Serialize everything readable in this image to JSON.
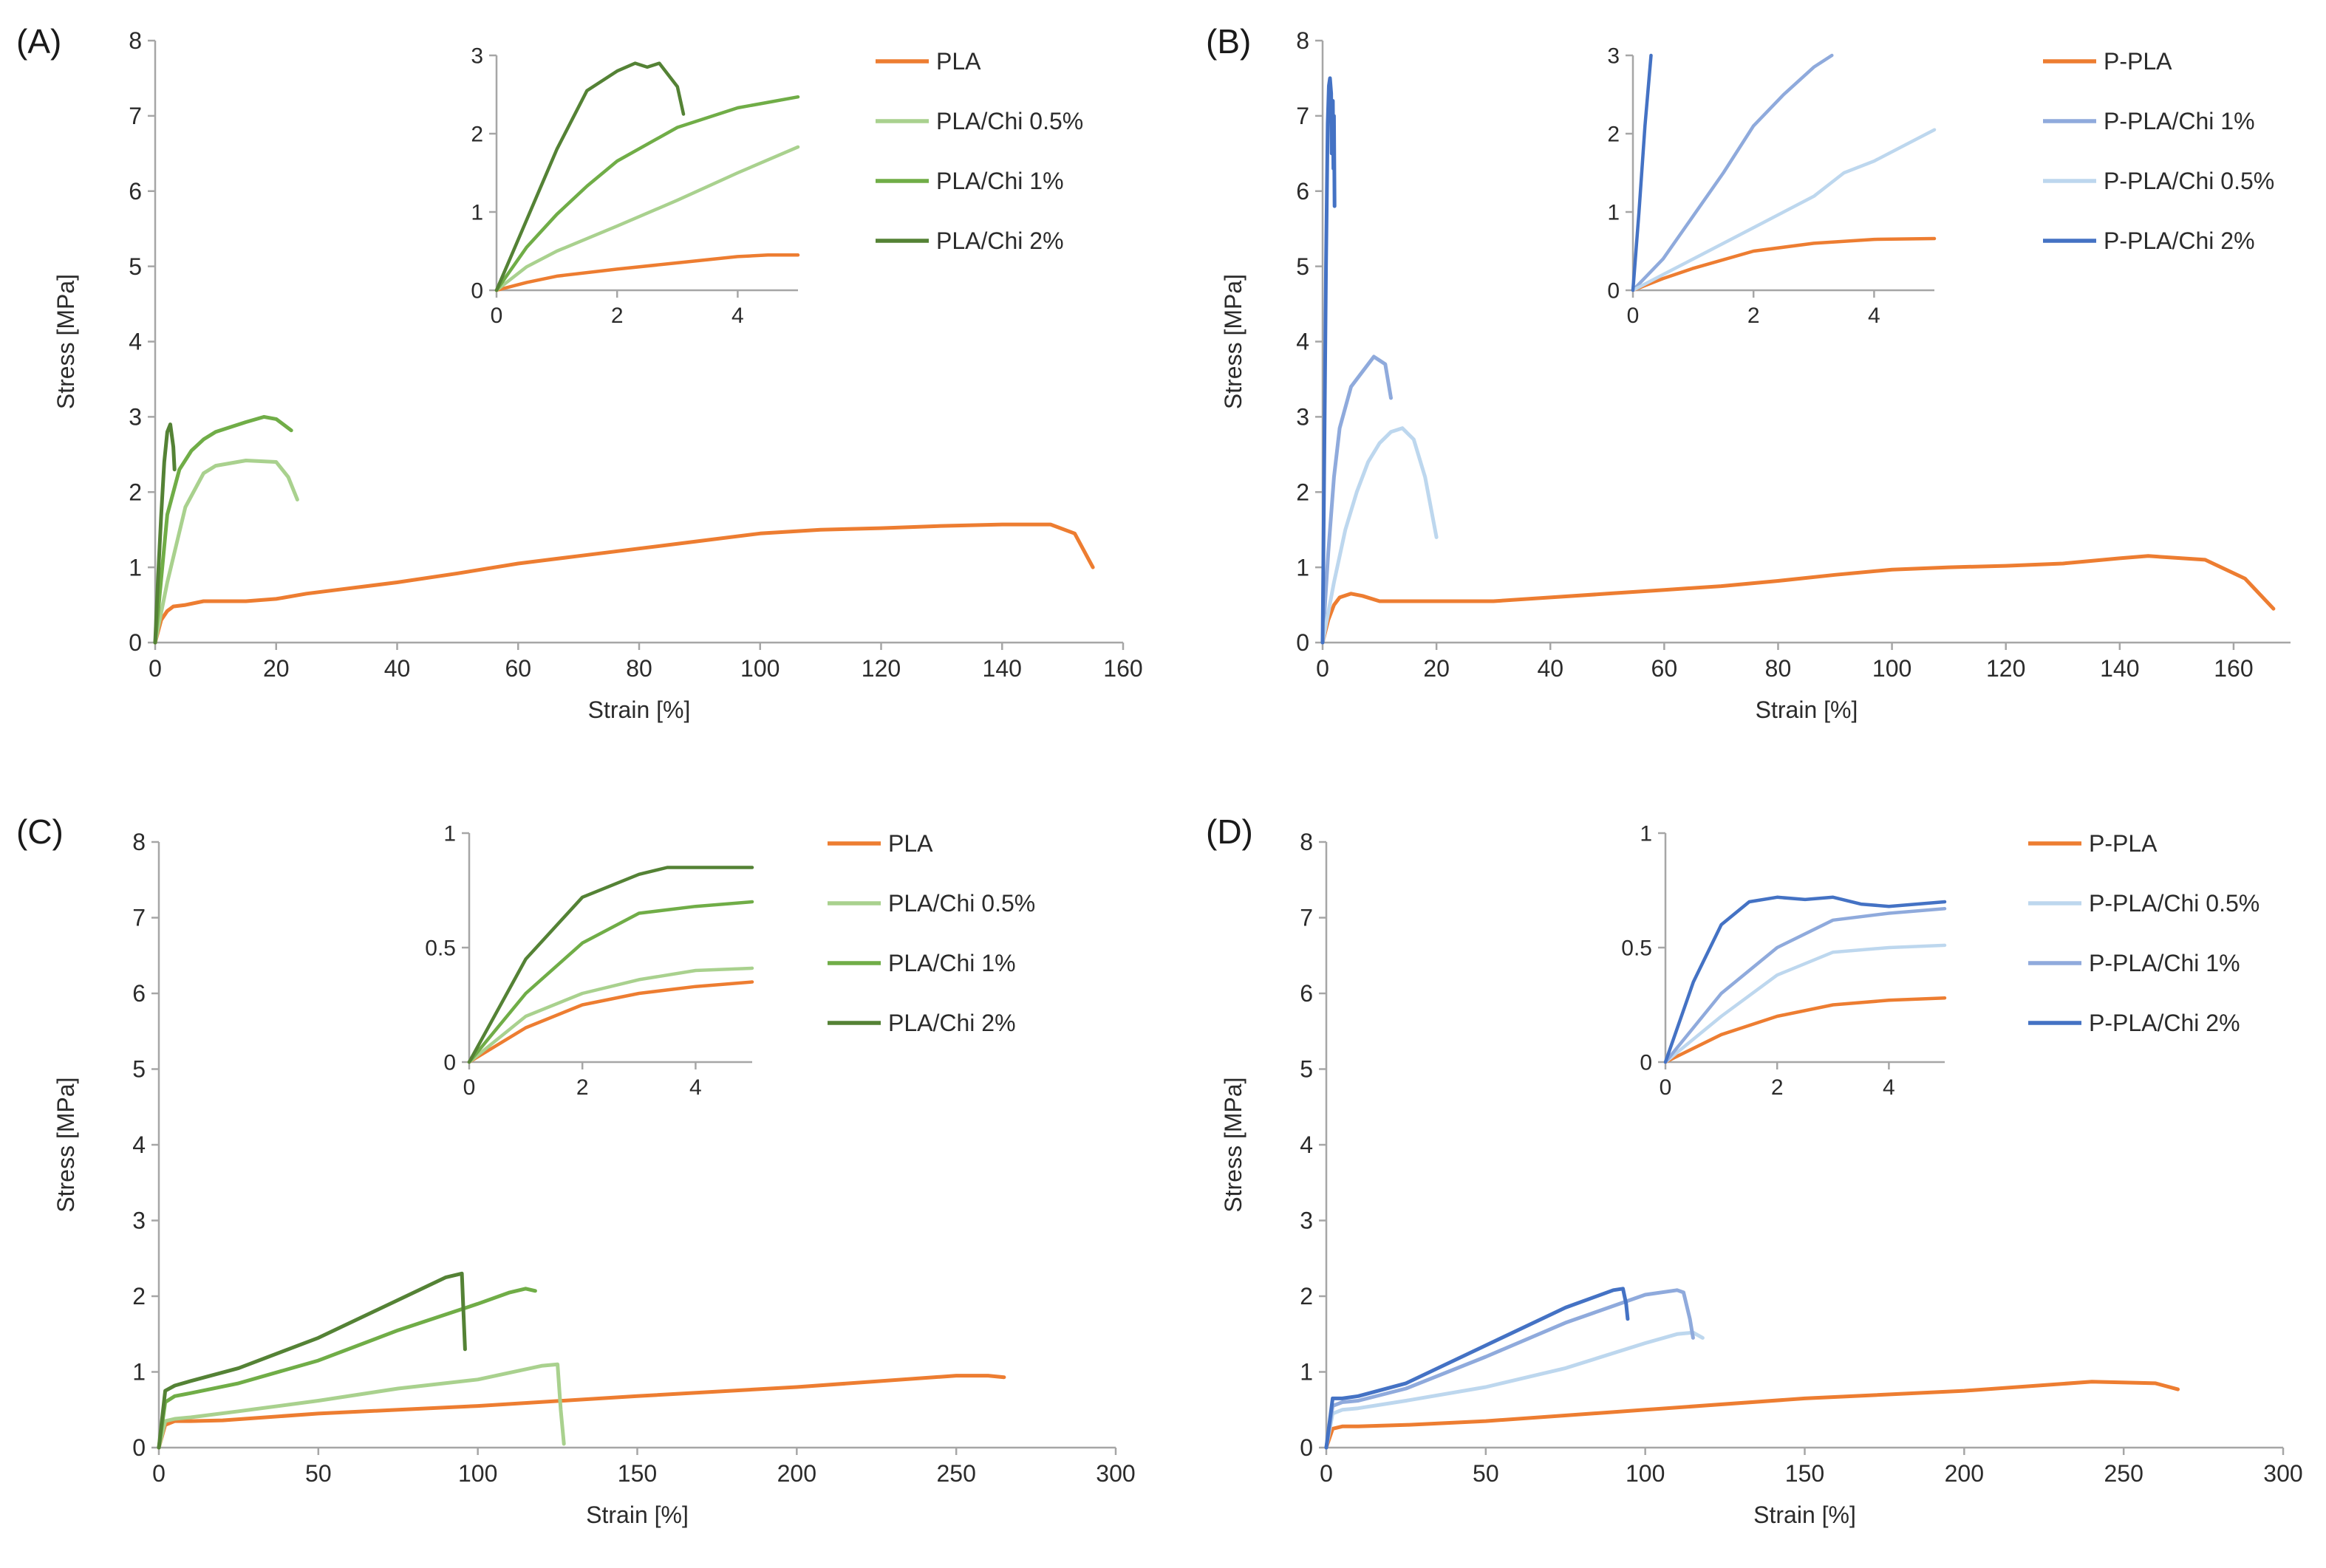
{
  "figure": {
    "colors": {
      "PLA": "#ed7d31",
      "P-PLA": "#ed7d31",
      "PLA/Chi 0.5%": "#a9d18e",
      "PLA/Chi 1%": "#70ad47",
      "PLA/Chi 2%": "#548235",
      "P-PLA/Chi 0.5%": "#bdd7ee",
      "P-PLA/Chi 1%": "#8faadc",
      "P-PLA/Chi 2%": "#4472c4"
    }
  },
  "chart_data": [
    {
      "panel": "(A)",
      "type": "line",
      "xlabel": "Strain [%]",
      "ylabel": "Stress [MPa]",
      "xlim": [
        0,
        160
      ],
      "ylim": [
        0,
        8
      ],
      "xticks": [
        0,
        20,
        40,
        60,
        80,
        100,
        120,
        140,
        160
      ],
      "yticks": [
        0,
        1,
        2,
        3,
        4,
        5,
        6,
        7,
        8
      ],
      "legend": [
        "PLA",
        "PLA/Chi 0.5%",
        "PLA/Chi 1%",
        "PLA/Chi 2%"
      ],
      "series": [
        {
          "name": "PLA",
          "x": [
            0,
            1,
            2,
            3,
            5,
            8,
            15,
            20,
            25,
            30,
            40,
            50,
            60,
            70,
            80,
            90,
            100,
            110,
            120,
            130,
            140,
            148,
            152,
            155
          ],
          "y": [
            0,
            0.3,
            0.42,
            0.48,
            0.5,
            0.55,
            0.55,
            0.58,
            0.65,
            0.7,
            0.8,
            0.92,
            1.05,
            1.15,
            1.25,
            1.35,
            1.45,
            1.5,
            1.52,
            1.55,
            1.57,
            1.57,
            1.45,
            1.0
          ]
        },
        {
          "name": "PLA/Chi 0.5%",
          "x": [
            0,
            2,
            5,
            8,
            10,
            15,
            20,
            22,
            23.5
          ],
          "y": [
            0,
            0.8,
            1.8,
            2.25,
            2.35,
            2.42,
            2.4,
            2.2,
            1.9
          ]
        },
        {
          "name": "PLA/Chi 1%",
          "x": [
            0,
            2,
            4,
            6,
            8,
            10,
            15,
            18,
            20,
            22.5
          ],
          "y": [
            0,
            1.7,
            2.3,
            2.55,
            2.7,
            2.8,
            2.93,
            3.0,
            2.97,
            2.82
          ]
        },
        {
          "name": "PLA/Chi 2%",
          "x": [
            0,
            0.5,
            1,
            1.5,
            2,
            2.5,
            3.0,
            3.2
          ],
          "y": [
            0,
            0.9,
            1.7,
            2.4,
            2.8,
            2.9,
            2.6,
            2.3
          ]
        }
      ],
      "inset": {
        "xlim": [
          0,
          5
        ],
        "ylim": [
          0,
          3
        ],
        "xticks": [
          0,
          2,
          4
        ],
        "yticks": [
          0,
          1,
          2,
          3
        ],
        "series": [
          {
            "name": "PLA",
            "x": [
              0,
              0.5,
              1,
              2,
              3,
              4,
              4.5,
              5
            ],
            "y": [
              0,
              0.1,
              0.18,
              0.27,
              0.35,
              0.43,
              0.45,
              0.45
            ]
          },
          {
            "name": "PLA/Chi 0.5%",
            "x": [
              0,
              0.5,
              1,
              2,
              3,
              4,
              5
            ],
            "y": [
              0,
              0.3,
              0.5,
              0.82,
              1.15,
              1.5,
              1.83
            ]
          },
          {
            "name": "PLA/Chi 1%",
            "x": [
              0,
              0.5,
              1,
              1.5,
              2,
              3,
              4,
              4.5,
              5
            ],
            "y": [
              0,
              0.55,
              0.97,
              1.33,
              1.65,
              2.08,
              2.33,
              2.4,
              2.47
            ]
          },
          {
            "name": "PLA/Chi 2%",
            "x": [
              0,
              0.5,
              1,
              1.5,
              2,
              2.3,
              2.5,
              2.7,
              3.0,
              3.1
            ],
            "y": [
              0,
              0.9,
              1.8,
              2.55,
              2.8,
              2.9,
              2.85,
              2.9,
              2.6,
              2.25
            ]
          }
        ]
      }
    },
    {
      "panel": "(B)",
      "type": "line",
      "xlabel": "Strain [%]",
      "ylabel": "Stress [MPa]",
      "xlim": [
        0,
        170
      ],
      "ylim": [
        0,
        8
      ],
      "xticks": [
        0,
        20,
        40,
        60,
        80,
        100,
        120,
        140,
        160
      ],
      "yticks": [
        0,
        1,
        2,
        3,
        4,
        5,
        6,
        7,
        8
      ],
      "legend": [
        "P-PLA",
        "P-PLA/Chi 1%",
        "P-PLA/Chi 0.5%",
        "P-PLA/Chi 2%"
      ],
      "series": [
        {
          "name": "P-PLA",
          "x": [
            0,
            1,
            2,
            3,
            5,
            7,
            10,
            15,
            20,
            30,
            40,
            50,
            60,
            70,
            80,
            90,
            100,
            110,
            120,
            130,
            140,
            145,
            155,
            162,
            167
          ],
          "y": [
            0,
            0.3,
            0.5,
            0.6,
            0.65,
            0.62,
            0.55,
            0.55,
            0.55,
            0.55,
            0.6,
            0.65,
            0.7,
            0.75,
            0.82,
            0.9,
            0.97,
            1.0,
            1.02,
            1.05,
            1.12,
            1.15,
            1.1,
            0.85,
            0.45
          ]
        },
        {
          "name": "P-PLA/Chi 1%",
          "x": [
            0,
            1,
            2,
            3,
            5,
            8,
            9,
            10,
            11,
            12
          ],
          "y": [
            0,
            1.2,
            2.2,
            2.85,
            3.4,
            3.7,
            3.8,
            3.75,
            3.7,
            3.25
          ]
        },
        {
          "name": "P-PLA/Chi 0.5%",
          "x": [
            0,
            2,
            4,
            6,
            8,
            10,
            12,
            14,
            16,
            18,
            20
          ],
          "y": [
            0,
            0.8,
            1.5,
            2.0,
            2.4,
            2.65,
            2.8,
            2.85,
            2.7,
            2.2,
            1.4
          ]
        },
        {
          "name": "P-PLA/Chi 2%",
          "x": [
            0,
            0.3,
            0.6,
            0.9,
            1.1,
            1.3,
            1.5,
            1.6,
            1.8,
            1.9,
            2.0,
            2.1
          ],
          "y": [
            0,
            2.5,
            5.0,
            6.9,
            7.4,
            7.5,
            7.3,
            6.5,
            7.2,
            6.3,
            7.0,
            5.8
          ]
        }
      ],
      "inset": {
        "xlim": [
          0,
          5
        ],
        "ylim": [
          0,
          3
        ],
        "xticks": [
          0,
          2,
          4
        ],
        "yticks": [
          0,
          1,
          2,
          3
        ],
        "series": [
          {
            "name": "P-PLA",
            "x": [
              0,
              0.5,
              1,
              2,
              3,
              4,
              5
            ],
            "y": [
              0,
              0.15,
              0.28,
              0.5,
              0.6,
              0.65,
              0.66
            ]
          },
          {
            "name": "P-PLA/Chi 1%",
            "x": [
              0,
              0.5,
              1,
              1.5,
              2,
              2.5,
              3,
              3.3
            ],
            "y": [
              0,
              0.4,
              0.95,
              1.5,
              2.1,
              2.5,
              2.85,
              3.0
            ]
          },
          {
            "name": "P-PLA/Chi 0.5%",
            "x": [
              0,
              0.5,
              1,
              2,
              3,
              3.5,
              4,
              5
            ],
            "y": [
              0,
              0.2,
              0.4,
              0.8,
              1.2,
              1.5,
              1.65,
              2.05
            ]
          },
          {
            "name": "P-PLA/Chi 2%",
            "x": [
              0,
              0.1,
              0.2,
              0.3
            ],
            "y": [
              0,
              1.0,
              2.1,
              3.0
            ]
          }
        ]
      }
    },
    {
      "panel": "(C)",
      "type": "line",
      "xlabel": "Strain [%]",
      "ylabel": "Stress [MPa]",
      "xlim": [
        0,
        300
      ],
      "ylim": [
        0,
        8
      ],
      "xticks": [
        0,
        50,
        100,
        150,
        200,
        250,
        300
      ],
      "yticks": [
        0,
        1,
        2,
        3,
        4,
        5,
        6,
        7,
        8
      ],
      "legend": [
        "PLA",
        "PLA/Chi 0.5%",
        "PLA/Chi 1%",
        "PLA/Chi 2%"
      ],
      "series": [
        {
          "name": "PLA",
          "x": [
            0,
            2,
            5,
            10,
            20,
            50,
            100,
            150,
            200,
            250,
            260,
            265
          ],
          "y": [
            0,
            0.3,
            0.35,
            0.35,
            0.36,
            0.45,
            0.55,
            0.68,
            0.8,
            0.95,
            0.95,
            0.93
          ]
        },
        {
          "name": "PLA/Chi 0.5%",
          "x": [
            0,
            2,
            5,
            10,
            25,
            50,
            75,
            100,
            120,
            125,
            126,
            127
          ],
          "y": [
            0,
            0.35,
            0.38,
            0.4,
            0.48,
            0.62,
            0.78,
            0.9,
            1.08,
            1.1,
            0.5,
            0.05
          ]
        },
        {
          "name": "PLA/Chi 1%",
          "x": [
            0,
            2,
            5,
            10,
            25,
            50,
            75,
            100,
            110,
            115,
            118
          ],
          "y": [
            0,
            0.6,
            0.68,
            0.72,
            0.85,
            1.15,
            1.55,
            1.9,
            2.05,
            2.1,
            2.07
          ]
        },
        {
          "name": "PLA/Chi 2%",
          "x": [
            0,
            2,
            5,
            10,
            25,
            50,
            75,
            90,
            95,
            95.5,
            96
          ],
          "y": [
            0,
            0.75,
            0.82,
            0.88,
            1.05,
            1.45,
            1.95,
            2.25,
            2.3,
            1.8,
            1.3
          ]
        }
      ],
      "inset": {
        "xlim": [
          0,
          5
        ],
        "ylim": [
          0,
          1
        ],
        "xticks": [
          0,
          2,
          4
        ],
        "yticks": [
          0,
          0.5,
          1
        ],
        "series": [
          {
            "name": "PLA",
            "x": [
              0,
              1,
              2,
              3,
              4,
              5
            ],
            "y": [
              0,
              0.15,
              0.25,
              0.3,
              0.33,
              0.35
            ]
          },
          {
            "name": "PLA/Chi 0.5%",
            "x": [
              0,
              1,
              2,
              3,
              4,
              5
            ],
            "y": [
              0,
              0.2,
              0.3,
              0.36,
              0.4,
              0.41
            ]
          },
          {
            "name": "PLA/Chi 1%",
            "x": [
              0,
              1,
              2,
              3,
              4,
              5
            ],
            "y": [
              0,
              0.3,
              0.52,
              0.65,
              0.68,
              0.7
            ]
          },
          {
            "name": "PLA/Chi 2%",
            "x": [
              0,
              1,
              2,
              3,
              3.5,
              4,
              5
            ],
            "y": [
              0,
              0.45,
              0.72,
              0.82,
              0.85,
              0.85,
              0.85
            ]
          }
        ]
      }
    },
    {
      "panel": "(D)",
      "type": "line",
      "xlabel": "Strain [%]",
      "ylabel": "Stress [MPa]",
      "xlim": [
        0,
        300
      ],
      "ylim": [
        0,
        8
      ],
      "xticks": [
        0,
        50,
        100,
        150,
        200,
        250,
        300
      ],
      "yticks": [
        0,
        1,
        2,
        3,
        4,
        5,
        6,
        7,
        8
      ],
      "legend": [
        "P-PLA",
        "P-PLA/Chi 0.5%",
        "P-PLA/Chi 1%",
        "P-PLA/Chi 2%"
      ],
      "series": [
        {
          "name": "P-PLA",
          "x": [
            0,
            2,
            5,
            10,
            25,
            50,
            100,
            150,
            200,
            240,
            260,
            267
          ],
          "y": [
            0,
            0.25,
            0.28,
            0.28,
            0.3,
            0.35,
            0.5,
            0.65,
            0.75,
            0.87,
            0.85,
            0.77
          ]
        },
        {
          "name": "P-PLA/Chi 0.5%",
          "x": [
            0,
            2,
            5,
            10,
            25,
            50,
            75,
            100,
            110,
            115,
            118
          ],
          "y": [
            0,
            0.45,
            0.5,
            0.52,
            0.62,
            0.8,
            1.05,
            1.38,
            1.5,
            1.52,
            1.45
          ]
        },
        {
          "name": "P-PLA/Chi 1%",
          "x": [
            0,
            2,
            5,
            10,
            25,
            50,
            75,
            100,
            110,
            112,
            114,
            115
          ],
          "y": [
            0,
            0.55,
            0.6,
            0.62,
            0.78,
            1.2,
            1.65,
            2.02,
            2.08,
            2.05,
            1.7,
            1.45
          ]
        },
        {
          "name": "P-PLA/Chi 2%",
          "x": [
            0,
            2,
            5,
            10,
            25,
            50,
            75,
            90,
            93,
            94,
            94.5
          ],
          "y": [
            0,
            0.65,
            0.65,
            0.68,
            0.85,
            1.35,
            1.85,
            2.08,
            2.1,
            1.9,
            1.7
          ]
        }
      ],
      "inset": {
        "xlim": [
          0,
          5
        ],
        "ylim": [
          0,
          1
        ],
        "xticks": [
          0,
          2,
          4
        ],
        "yticks": [
          0,
          0.5,
          1
        ],
        "series": [
          {
            "name": "P-PLA",
            "x": [
              0,
              1,
              2,
              3,
              4,
              5
            ],
            "y": [
              0,
              0.12,
              0.2,
              0.25,
              0.27,
              0.28
            ]
          },
          {
            "name": "P-PLA/Chi 0.5%",
            "x": [
              0,
              1,
              2,
              3,
              4,
              5
            ],
            "y": [
              0,
              0.2,
              0.38,
              0.48,
              0.5,
              0.51
            ]
          },
          {
            "name": "P-PLA/Chi 1%",
            "x": [
              0,
              1,
              2,
              3,
              4,
              5
            ],
            "y": [
              0,
              0.3,
              0.5,
              0.62,
              0.65,
              0.67
            ]
          },
          {
            "name": "P-PLA/Chi 2%",
            "x": [
              0,
              0.5,
              1,
              1.5,
              2,
              2.5,
              3,
              3.5,
              4,
              5
            ],
            "y": [
              0,
              0.35,
              0.6,
              0.7,
              0.72,
              0.71,
              0.72,
              0.69,
              0.68,
              0.7
            ]
          }
        ]
      }
    }
  ]
}
